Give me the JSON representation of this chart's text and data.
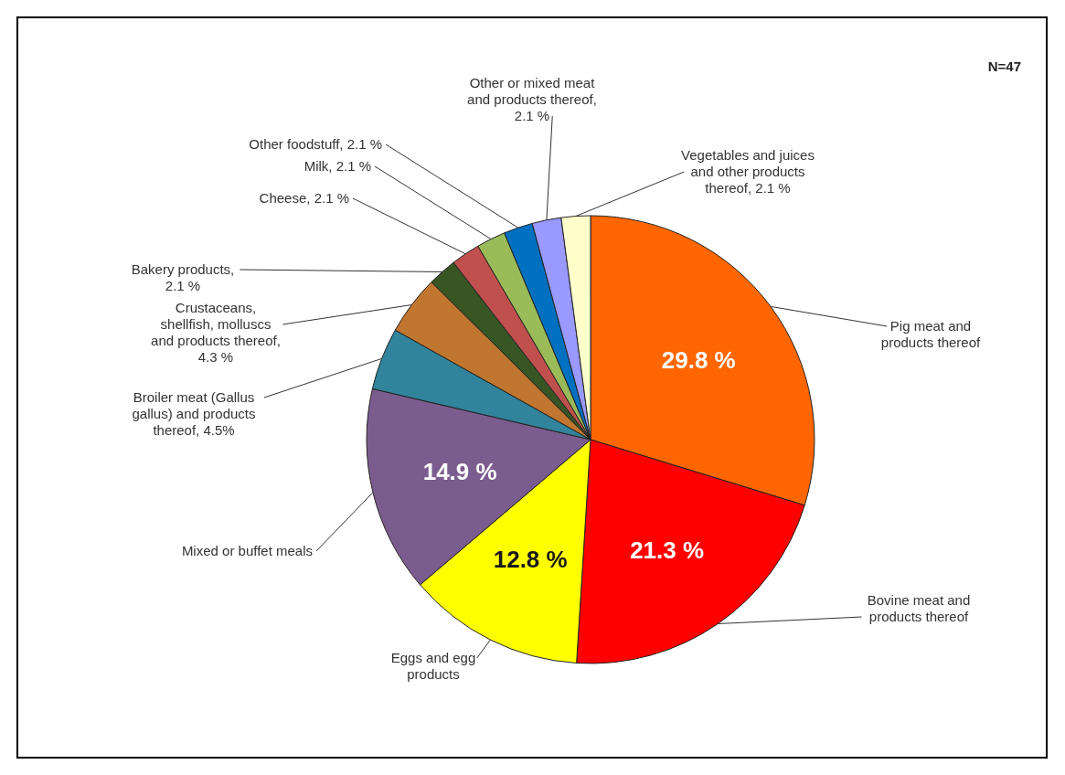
{
  "chart_data": {
    "type": "pie",
    "categories": [
      "Pig meat and products thereof",
      "Bovine meat and products thereof",
      "Eggs and egg products",
      "Mixed or buffet meals",
      "Broiler meat (Gallus gallus) and products thereof, 4.5%",
      "Crustaceans, shellfish, molluscs and products thereof, 4.3 %",
      "Bakery products, 2.1 %",
      "Cheese, 2.1 %",
      "Milk, 2.1 %",
      "Other foodstuff, 2.1 %",
      "Other or mixed meat and products thereof, 2.1 %",
      "Vegetables and juices and other products thereof, 2.1 %"
    ],
    "values": [
      29.8,
      21.3,
      12.8,
      14.9,
      4.5,
      4.3,
      2.1,
      2.1,
      2.1,
      2.1,
      2.1,
      2.1
    ],
    "colors": [
      "#ff6600",
      "#ff0000",
      "#ffff00",
      "#7b5c8f",
      "#31849b",
      "#c0762e",
      "#375623",
      "#c0504d",
      "#9bbb59",
      "#0070c0",
      "#9999ff",
      "#ffffcc"
    ],
    "value_labels": [
      "29.8 %",
      "21.3 %",
      "12.8 %",
      "14.9 %",
      null,
      null,
      null,
      null,
      null,
      null,
      null,
      null
    ],
    "annotations": [
      "N=47"
    ]
  }
}
